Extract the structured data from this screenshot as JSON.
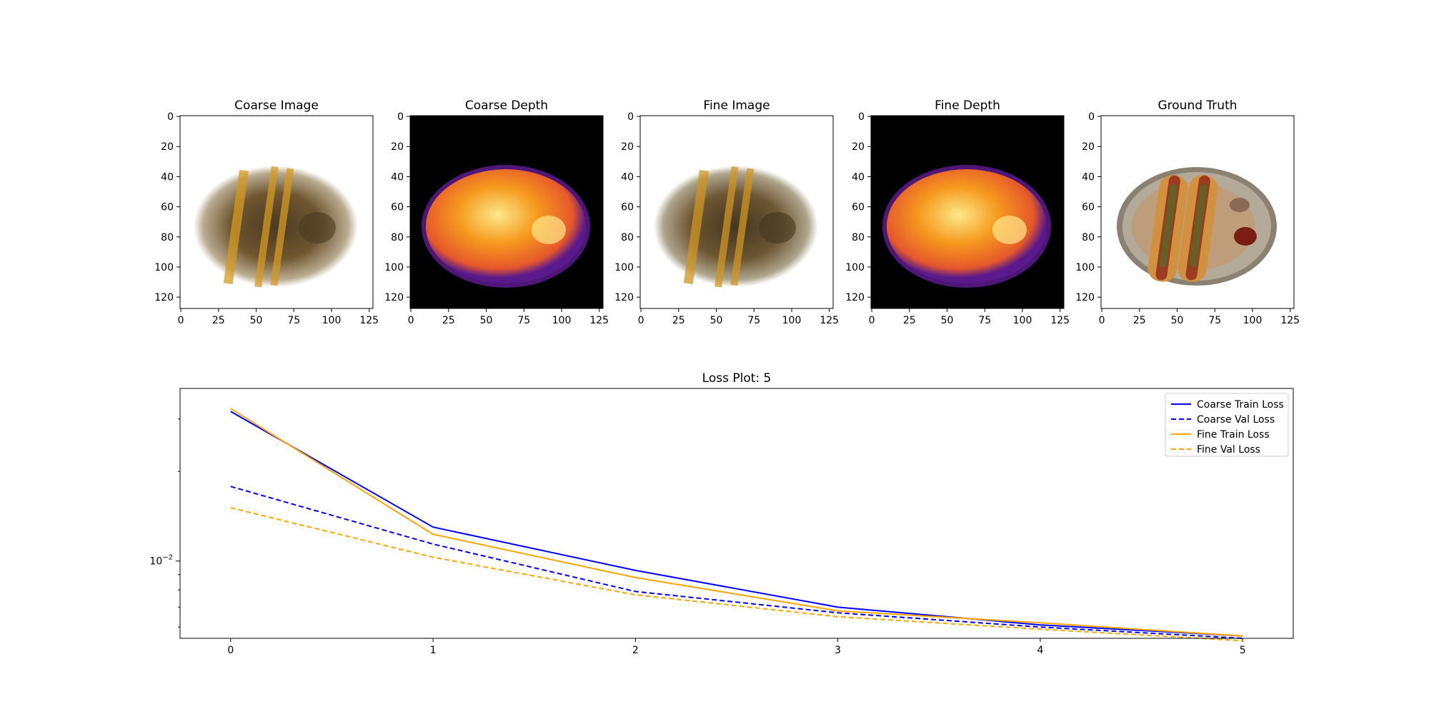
{
  "panels": [
    {
      "title": "Coarse Image",
      "kind": "rgb",
      "palette": {
        "bg": "#ffffff",
        "outer": "#b9ab90",
        "mid": "#6f5630",
        "streak": "#d49a22",
        "dark": "#4a3a22"
      }
    },
    {
      "title": "Coarse Depth",
      "kind": "depth",
      "palette": {
        "bg": "#000000",
        "edge": "#5a1a8c",
        "outer": "#e6582a",
        "mid": "#f59a1e",
        "core": "#fde88a"
      }
    },
    {
      "title": "Fine Image",
      "kind": "rgb",
      "palette": {
        "bg": "#ffffff",
        "outer": "#aea58c",
        "mid": "#6c5633",
        "streak": "#cf9524",
        "dark": "#43371f"
      }
    },
    {
      "title": "Fine Depth",
      "kind": "depth",
      "palette": {
        "bg": "#000000",
        "edge": "#5a1a8c",
        "outer": "#e6582a",
        "mid": "#f59a1e",
        "core": "#fde88a"
      }
    },
    {
      "title": "Ground Truth",
      "kind": "gt",
      "palette": {
        "bg": "#ffffff",
        "plate": "#b3aa9a",
        "plate_rim": "#8a8172",
        "bun": "#d1913f",
        "sausage": "#9a3b22",
        "relish": "#5a6a28",
        "ketchup": "#7a1e14",
        "sauce": "#8a6a55"
      }
    }
  ],
  "image_axes": {
    "x_ticks": [
      0,
      25,
      50,
      75,
      100,
      125
    ],
    "y_ticks": [
      0,
      20,
      40,
      60,
      80,
      100,
      120
    ],
    "x_range": [
      -0.5,
      127.5
    ],
    "y_range": [
      -0.5,
      127.5
    ]
  },
  "chart_data": {
    "type": "line",
    "title": "Loss Plot: 5",
    "x": [
      0,
      1,
      2,
      3,
      4,
      5
    ],
    "x_ticks": [
      0,
      1,
      2,
      3,
      4,
      5
    ],
    "xlim": [
      -0.25,
      5.25
    ],
    "y_scale": "log",
    "ylim": [
      0.0055,
      0.038
    ],
    "y_tick_labels": [
      {
        "value": 0.01,
        "base": "10",
        "exp": "−2"
      }
    ],
    "y_minor_ticks": [
      0.006,
      0.007,
      0.008,
      0.009,
      0.02,
      0.03
    ],
    "legend_position": "top-right",
    "series": [
      {
        "name": "Coarse Train Loss",
        "color": "#0000ff",
        "dash": "solid",
        "values": [
          0.0318,
          0.013,
          0.0093,
          0.007,
          0.0061,
          0.0056
        ]
      },
      {
        "name": "Coarse Val Loss",
        "color": "#0000ff",
        "dash": "dashed",
        "values": [
          0.0178,
          0.0114,
          0.0079,
          0.0067,
          0.006,
          0.0055
        ]
      },
      {
        "name": "Fine Train Loss",
        "color": "#ffa500",
        "dash": "solid",
        "values": [
          0.0325,
          0.0123,
          0.0088,
          0.0068,
          0.0062,
          0.0056
        ]
      },
      {
        "name": "Fine Val Loss",
        "color": "#ffa500",
        "dash": "dashed",
        "values": [
          0.0151,
          0.0103,
          0.0077,
          0.0065,
          0.0059,
          0.0054
        ]
      }
    ]
  }
}
